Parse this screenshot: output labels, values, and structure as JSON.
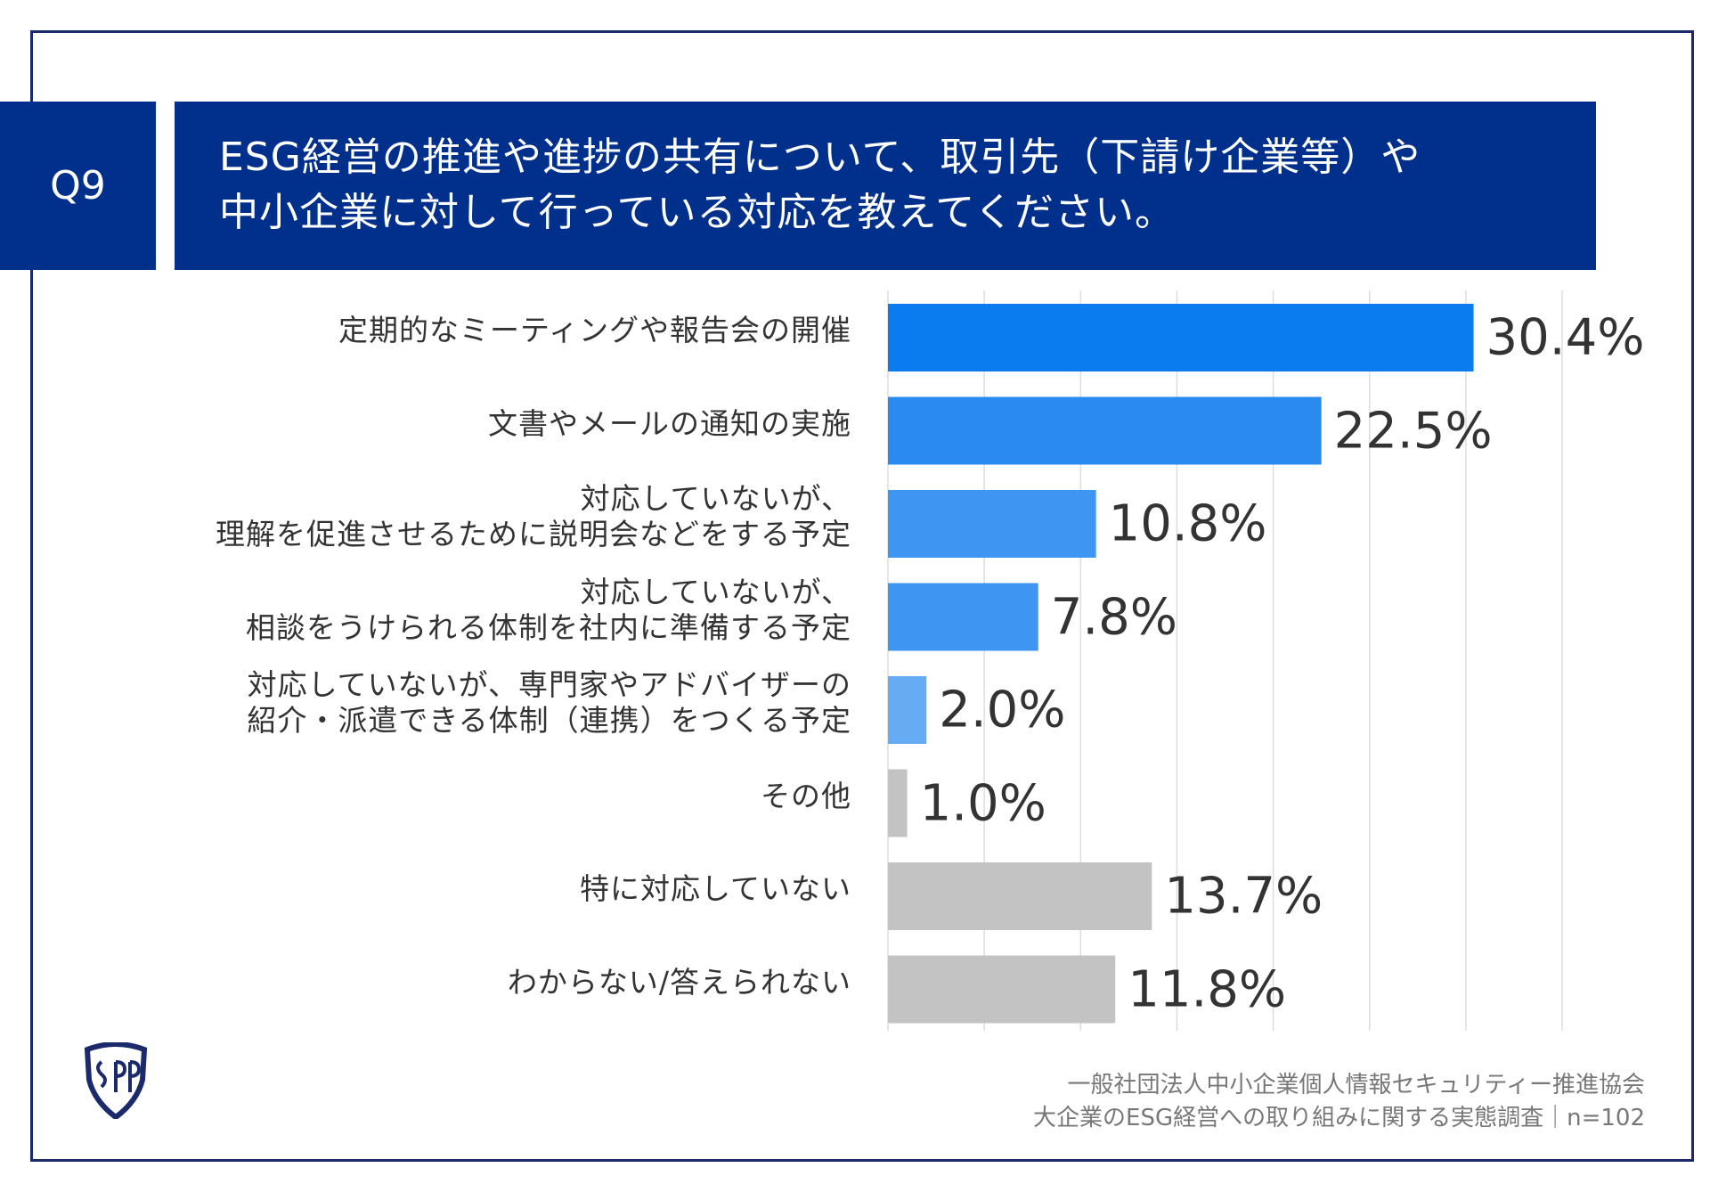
{
  "question": {
    "number": "Q9",
    "title_lines": [
      "ESG経営の推進や進捗の共有について、取引先（下請け企業等）や",
      "中小企業に対して行っている対応を教えてください。"
    ]
  },
  "chart_data": {
    "type": "bar",
    "orientation": "horizontal",
    "unit": "%",
    "xlim": [
      0,
      35
    ],
    "grid": true,
    "gridline_step": 5,
    "categories": [
      [
        "定期的なミーティングや報告会の開催"
      ],
      [
        "文書やメールの通知の実施"
      ],
      [
        "対応していないが、",
        "理解を促進させるために説明会などをする予定"
      ],
      [
        "対応していないが、",
        "相談をうけられる体制を社内に準備する予定"
      ],
      [
        "対応していないが、専門家やアドバイザーの",
        "紹介・派遣できる体制（連携）をつくる予定"
      ],
      [
        "その他"
      ],
      [
        "特に対応していない"
      ],
      [
        "わからない/答えられない"
      ]
    ],
    "values": [
      30.4,
      22.5,
      10.8,
      7.8,
      2.0,
      1.0,
      13.7,
      11.8
    ],
    "value_labels": [
      "30.4%",
      "22.5%",
      "10.8%",
      "7.8%",
      "2.0%",
      "1.0%",
      "13.7%",
      "11.8%"
    ],
    "bar_colors": [
      "#0a7cf0",
      "#2b8af0",
      "#3f95f2",
      "#3f95f2",
      "#66acf5",
      "#c3c3c3",
      "#c3c3c3",
      "#c3c3c3"
    ]
  },
  "footer": {
    "organization": "一般社団法人中小企業個人情報セキュリティー推進協会",
    "survey": "大企業のESG経営への取り組みに関する実態調査｜n=102"
  },
  "colors": {
    "header_bg": "#00308c",
    "frame": "#1b2a6b",
    "gridline": "#dddddd"
  },
  "logo": {
    "icon": "spp-shield-logo",
    "text": "SPP"
  }
}
